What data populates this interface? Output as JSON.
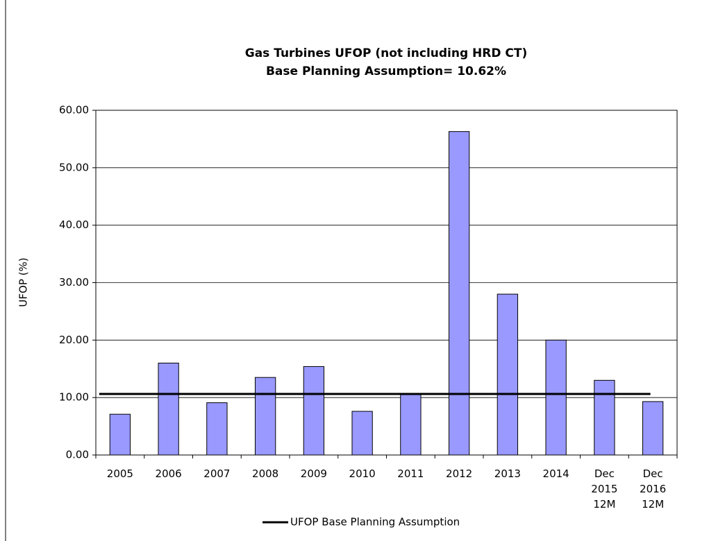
{
  "chart_data": {
    "type": "bar",
    "title": "Gas Turbines UFOP (not including HRD CT)",
    "subtitle": "Base Planning Assumption= 10.62%",
    "y_label": "UFOP (%)",
    "categories": [
      "2005",
      "2006",
      "2007",
      "2008",
      "2009",
      "2010",
      "2011",
      "2012",
      "2013",
      "2014",
      "Dec 2015 12M",
      "Dec 2016 12M"
    ],
    "values": [
      7.1,
      16.0,
      9.1,
      13.5,
      15.4,
      7.6,
      10.5,
      56.3,
      28.0,
      20.0,
      13.0,
      9.3
    ],
    "color": "#9999ff",
    "reference_line": {
      "name": "UFOP Base Planning Assumption",
      "value": 10.62,
      "color": "#000000"
    },
    "ylim": [
      0,
      60
    ],
    "yticks": [
      {
        "value": 0,
        "label": "0.00"
      },
      {
        "value": 10,
        "label": "10.00"
      },
      {
        "value": 20,
        "label": "20.00"
      },
      {
        "value": 30,
        "label": "30.00"
      },
      {
        "value": 40,
        "label": "40.00"
      },
      {
        "value": 50,
        "label": "50.00"
      },
      {
        "value": 60,
        "label": "60.00"
      }
    ],
    "grid": true
  }
}
